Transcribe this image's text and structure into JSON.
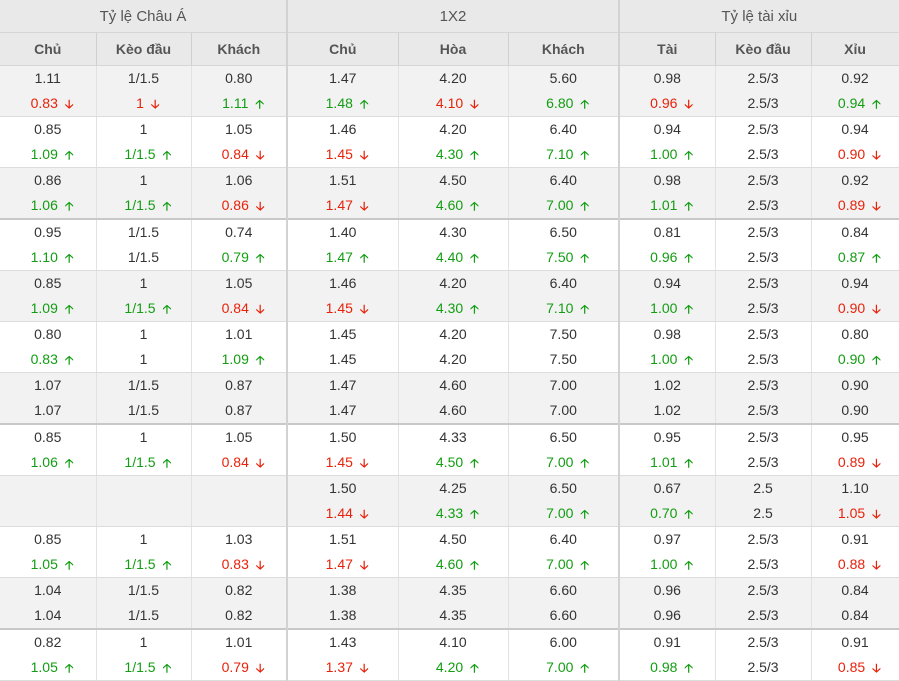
{
  "groups": [
    "Tỷ lệ Châu Á",
    "1X2",
    "Tỷ lệ tài xỉu"
  ],
  "columns": [
    "Chủ",
    "Kèo đầu",
    "Khách",
    "Chủ",
    "Hòa",
    "Khách",
    "Tài",
    "Kèo đầu",
    "Xỉu"
  ],
  "arrow_up": "🡡",
  "arrow_down": "🡣",
  "colors": {
    "up": "#129d12",
    "down": "#e8220a",
    "header_bg": "#e9e9e9",
    "shaded_bg": "#f2f2f2"
  },
  "rows": [
    {
      "shaded": true,
      "sep": false,
      "cells": [
        [
          "1.11",
          "0.83",
          "down"
        ],
        [
          "1/1.5",
          "1",
          "down"
        ],
        [
          "0.80",
          "1.11",
          "up"
        ],
        [
          "1.47",
          "1.48",
          "up"
        ],
        [
          "4.20",
          "4.10",
          "down"
        ],
        [
          "5.60",
          "6.80",
          "up"
        ],
        [
          "0.98",
          "0.96",
          "down"
        ],
        [
          "2.5/3",
          "2.5/3",
          ""
        ],
        [
          "0.92",
          "0.94",
          "up"
        ]
      ]
    },
    {
      "shaded": false,
      "sep": false,
      "cells": [
        [
          "0.85",
          "1.09",
          "up"
        ],
        [
          "1",
          "1/1.5",
          "up"
        ],
        [
          "1.05",
          "0.84",
          "down"
        ],
        [
          "1.46",
          "1.45",
          "down"
        ],
        [
          "4.20",
          "4.30",
          "up"
        ],
        [
          "6.40",
          "7.10",
          "up"
        ],
        [
          "0.94",
          "1.00",
          "up"
        ],
        [
          "2.5/3",
          "2.5/3",
          ""
        ],
        [
          "0.94",
          "0.90",
          "down"
        ]
      ]
    },
    {
      "shaded": true,
      "sep": false,
      "cells": [
        [
          "0.86",
          "1.06",
          "up"
        ],
        [
          "1",
          "1/1.5",
          "up"
        ],
        [
          "1.06",
          "0.86",
          "down"
        ],
        [
          "1.51",
          "1.47",
          "down"
        ],
        [
          "4.50",
          "4.60",
          "up"
        ],
        [
          "6.40",
          "7.00",
          "up"
        ],
        [
          "0.98",
          "1.01",
          "up"
        ],
        [
          "2.5/3",
          "2.5/3",
          ""
        ],
        [
          "0.92",
          "0.89",
          "down"
        ]
      ]
    },
    {
      "shaded": false,
      "sep": true,
      "cells": [
        [
          "0.95",
          "1.10",
          "up"
        ],
        [
          "1/1.5",
          "1/1.5",
          ""
        ],
        [
          "0.74",
          "0.79",
          "up"
        ],
        [
          "1.40",
          "1.47",
          "up"
        ],
        [
          "4.30",
          "4.40",
          "up"
        ],
        [
          "6.50",
          "7.50",
          "up"
        ],
        [
          "0.81",
          "0.96",
          "up"
        ],
        [
          "2.5/3",
          "2.5/3",
          ""
        ],
        [
          "0.84",
          "0.87",
          "up"
        ]
      ]
    },
    {
      "shaded": true,
      "sep": false,
      "cells": [
        [
          "0.85",
          "1.09",
          "up"
        ],
        [
          "1",
          "1/1.5",
          "up"
        ],
        [
          "1.05",
          "0.84",
          "down"
        ],
        [
          "1.46",
          "1.45",
          "down"
        ],
        [
          "4.20",
          "4.30",
          "up"
        ],
        [
          "6.40",
          "7.10",
          "up"
        ],
        [
          "0.94",
          "1.00",
          "up"
        ],
        [
          "2.5/3",
          "2.5/3",
          ""
        ],
        [
          "0.94",
          "0.90",
          "down"
        ]
      ]
    },
    {
      "shaded": false,
      "sep": false,
      "cells": [
        [
          "0.80",
          "0.83",
          "up"
        ],
        [
          "1",
          "1",
          ""
        ],
        [
          "1.01",
          "1.09",
          "up"
        ],
        [
          "1.45",
          "1.45",
          ""
        ],
        [
          "4.20",
          "4.20",
          ""
        ],
        [
          "7.50",
          "7.50",
          ""
        ],
        [
          "0.98",
          "1.00",
          "up"
        ],
        [
          "2.5/3",
          "2.5/3",
          ""
        ],
        [
          "0.80",
          "0.90",
          "up"
        ]
      ]
    },
    {
      "shaded": true,
      "sep": false,
      "cells": [
        [
          "1.07",
          "1.07",
          ""
        ],
        [
          "1/1.5",
          "1/1.5",
          ""
        ],
        [
          "0.87",
          "0.87",
          ""
        ],
        [
          "1.47",
          "1.47",
          ""
        ],
        [
          "4.60",
          "4.60",
          ""
        ],
        [
          "7.00",
          "7.00",
          ""
        ],
        [
          "1.02",
          "1.02",
          ""
        ],
        [
          "2.5/3",
          "2.5/3",
          ""
        ],
        [
          "0.90",
          "0.90",
          ""
        ]
      ]
    },
    {
      "shaded": false,
      "sep": true,
      "cells": [
        [
          "0.85",
          "1.06",
          "up"
        ],
        [
          "1",
          "1/1.5",
          "up"
        ],
        [
          "1.05",
          "0.84",
          "down"
        ],
        [
          "1.50",
          "1.45",
          "down"
        ],
        [
          "4.33",
          "4.50",
          "up"
        ],
        [
          "6.50",
          "7.00",
          "up"
        ],
        [
          "0.95",
          "1.01",
          "up"
        ],
        [
          "2.5/3",
          "2.5/3",
          ""
        ],
        [
          "0.95",
          "0.89",
          "down"
        ]
      ]
    },
    {
      "shaded": true,
      "sep": false,
      "cells": [
        [
          "",
          "",
          ""
        ],
        [
          "",
          "",
          ""
        ],
        [
          "",
          "",
          ""
        ],
        [
          "1.50",
          "1.44",
          "down"
        ],
        [
          "4.25",
          "4.33",
          "up"
        ],
        [
          "6.50",
          "7.00",
          "up"
        ],
        [
          "0.67",
          "0.70",
          "up"
        ],
        [
          "2.5",
          "2.5",
          ""
        ],
        [
          "1.10",
          "1.05",
          "down"
        ]
      ]
    },
    {
      "shaded": false,
      "sep": false,
      "cells": [
        [
          "0.85",
          "1.05",
          "up"
        ],
        [
          "1",
          "1/1.5",
          "up"
        ],
        [
          "1.03",
          "0.83",
          "down"
        ],
        [
          "1.51",
          "1.47",
          "down"
        ],
        [
          "4.50",
          "4.60",
          "up"
        ],
        [
          "6.40",
          "7.00",
          "up"
        ],
        [
          "0.97",
          "1.00",
          "up"
        ],
        [
          "2.5/3",
          "2.5/3",
          ""
        ],
        [
          "0.91",
          "0.88",
          "down"
        ]
      ]
    },
    {
      "shaded": true,
      "sep": false,
      "cells": [
        [
          "1.04",
          "1.04",
          ""
        ],
        [
          "1/1.5",
          "1/1.5",
          ""
        ],
        [
          "0.82",
          "0.82",
          ""
        ],
        [
          "1.38",
          "1.38",
          ""
        ],
        [
          "4.35",
          "4.35",
          ""
        ],
        [
          "6.60",
          "6.60",
          ""
        ],
        [
          "0.96",
          "0.96",
          ""
        ],
        [
          "2.5/3",
          "2.5/3",
          ""
        ],
        [
          "0.84",
          "0.84",
          ""
        ]
      ]
    },
    {
      "shaded": false,
      "sep": true,
      "cells": [
        [
          "0.82",
          "1.05",
          "up"
        ],
        [
          "1",
          "1/1.5",
          "up"
        ],
        [
          "1.01",
          "0.79",
          "down"
        ],
        [
          "1.43",
          "1.37",
          "down"
        ],
        [
          "4.10",
          "4.20",
          "up"
        ],
        [
          "6.00",
          "7.00",
          "up"
        ],
        [
          "0.91",
          "0.98",
          "up"
        ],
        [
          "2.5/3",
          "2.5/3",
          ""
        ],
        [
          "0.91",
          "0.85",
          "down"
        ]
      ]
    }
  ]
}
